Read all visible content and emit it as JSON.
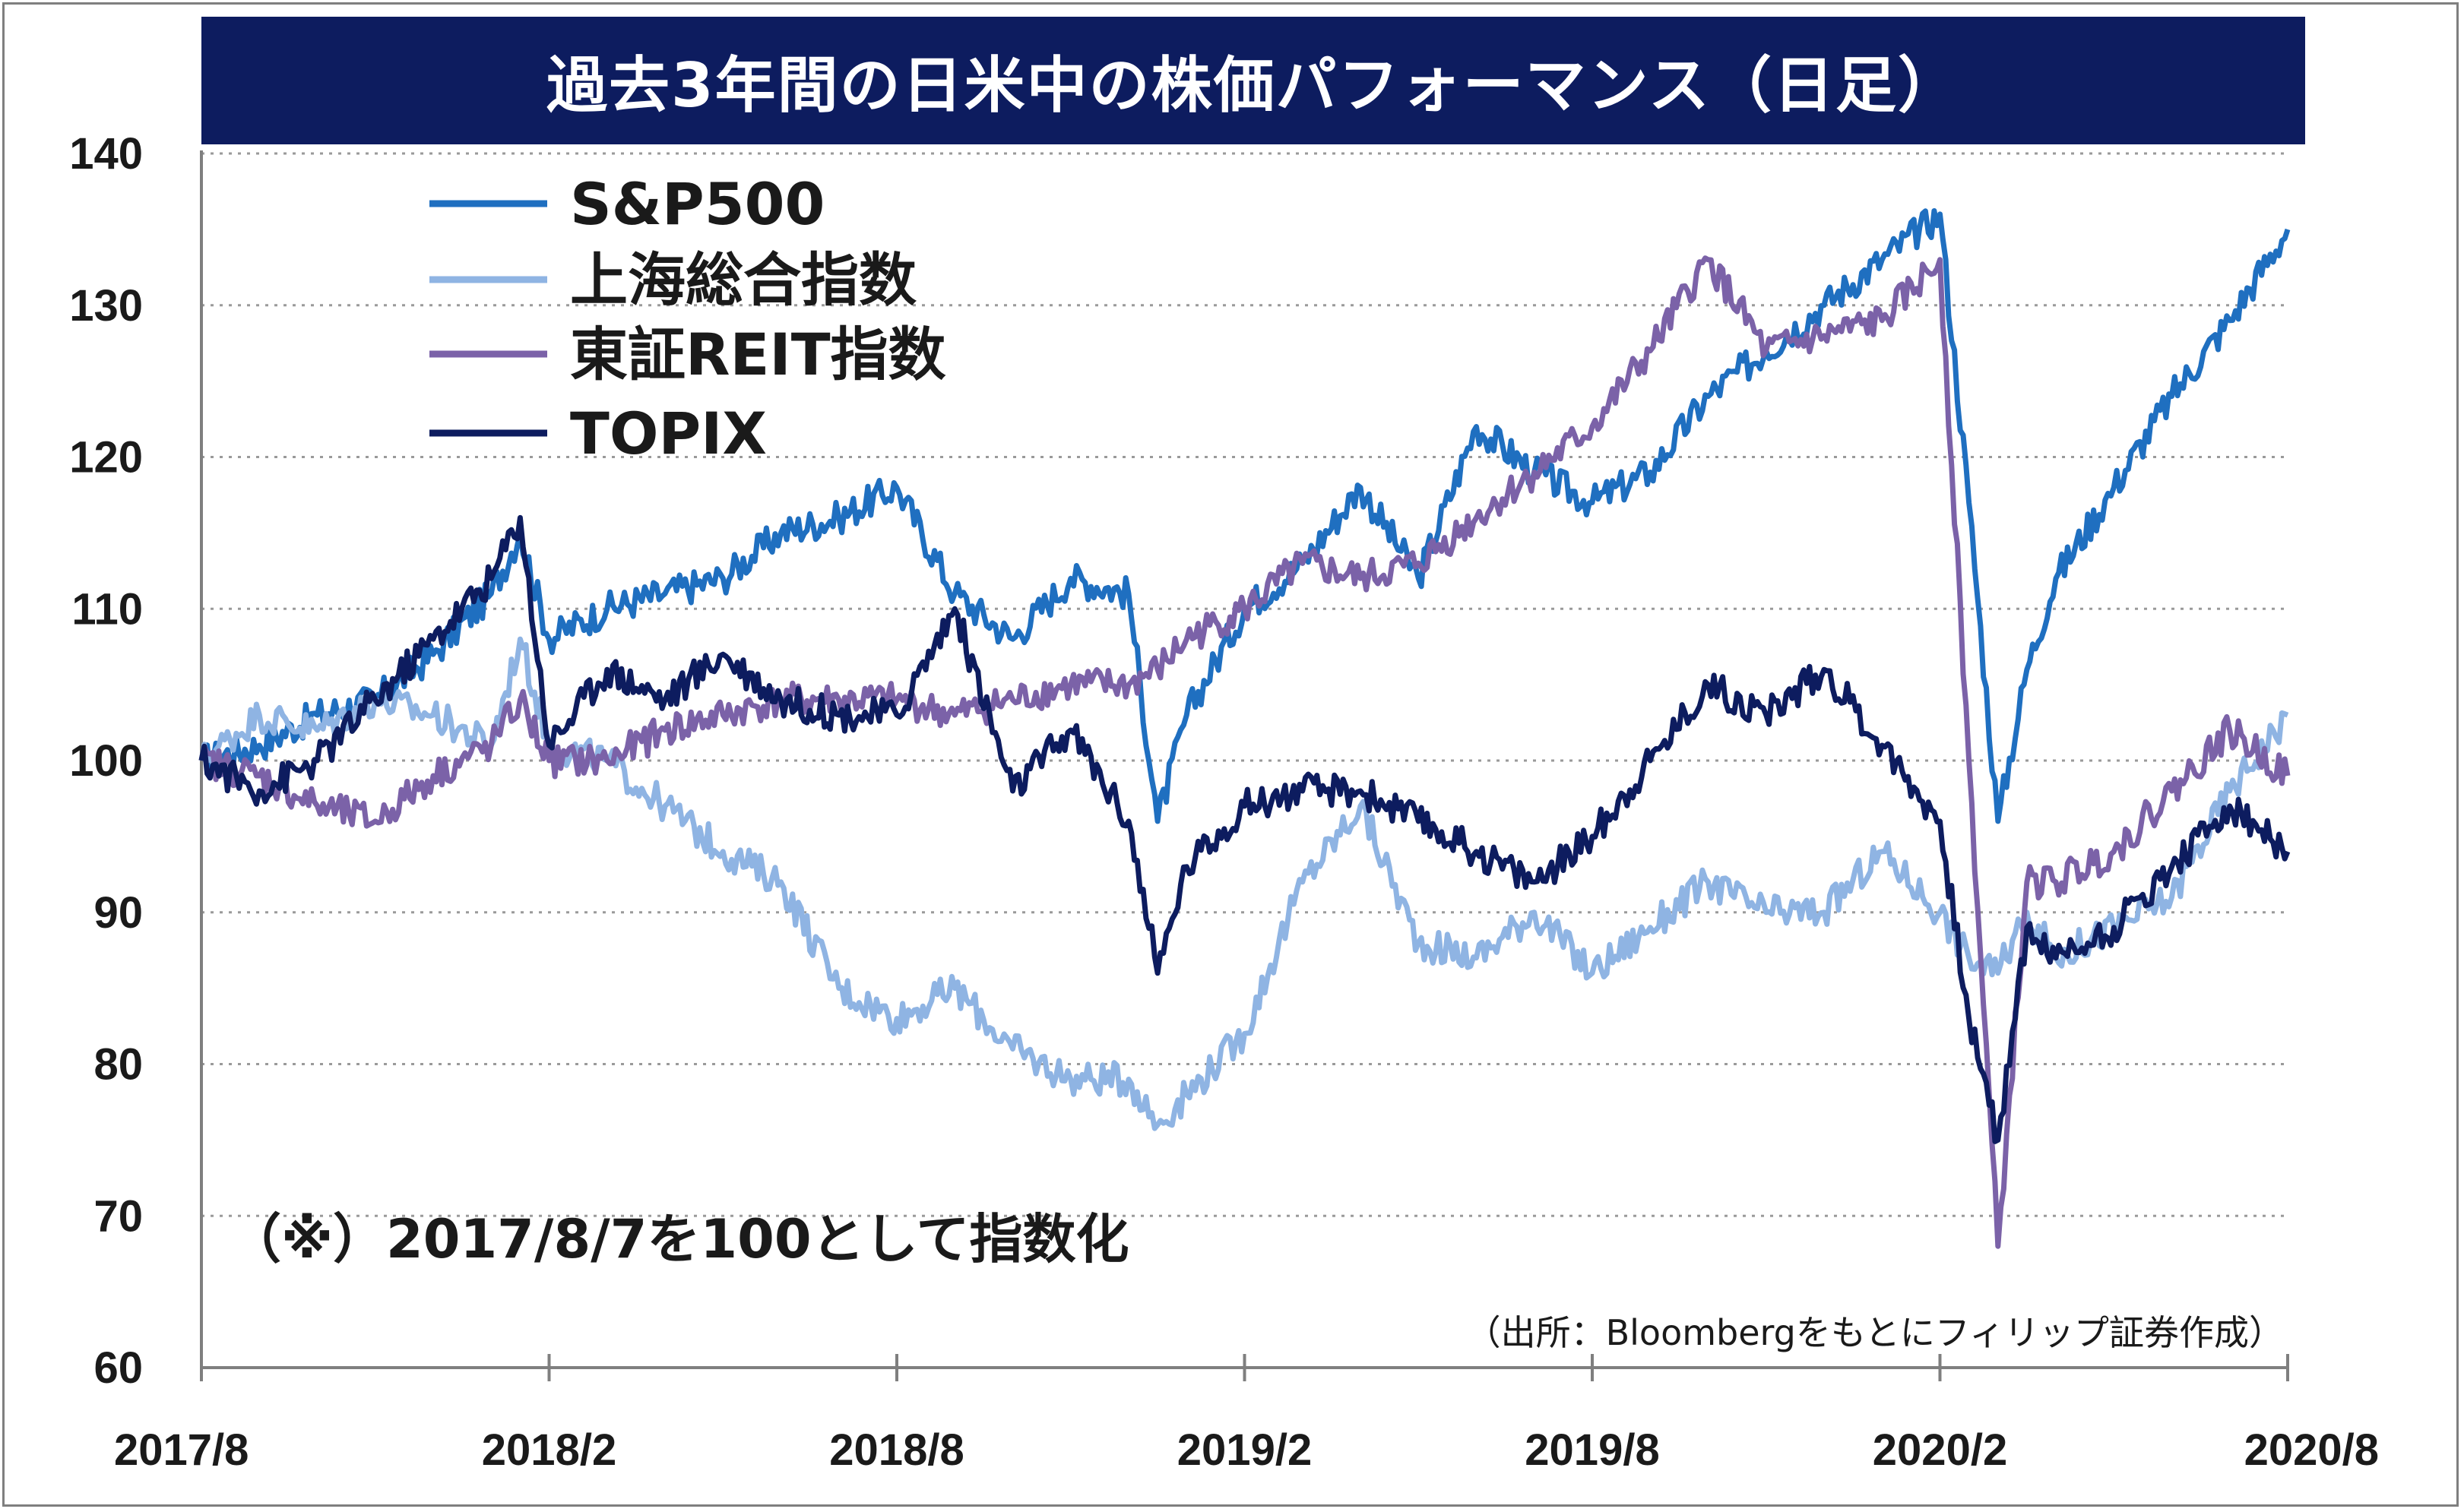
{
  "title": "過去3年間の日米中の株価パフォーマンス（日足）",
  "note": "（※）2017/8/7を100として指数化",
  "source": "（出所：Bloombergをもとにフィリップ証券作成）",
  "chart_data": {
    "type": "line",
    "title": "過去3年間の日米中の株価パフォーマンス（日足）",
    "xlabel": "",
    "ylabel": "",
    "ylim": [
      60,
      140
    ],
    "yticks": [
      60,
      70,
      80,
      90,
      100,
      110,
      120,
      130,
      140
    ],
    "grid": true,
    "legend_position": "top-left",
    "x_tick_labels": [
      "2017/8",
      "2018/2",
      "2018/8",
      "2019/2",
      "2019/8",
      "2020/2",
      "2020/8"
    ],
    "x_tick_positions": [
      0,
      6,
      12,
      18,
      24,
      30,
      36
    ],
    "x": [
      0,
      1,
      2,
      3,
      4,
      5,
      5.5,
      6,
      7,
      8,
      9,
      10,
      11,
      12,
      13,
      14,
      15,
      16,
      16.5,
      17,
      18,
      19,
      20,
      21,
      22,
      23,
      24,
      25,
      26,
      27,
      28,
      29,
      30,
      30.5,
      31,
      31.5,
      32,
      33,
      34,
      35,
      36
    ],
    "series": [
      {
        "name": "S&P500",
        "color": "#1f6fc0",
        "values": [
          100,
          101,
          103,
          104,
          107,
          111,
          115,
          108,
          110,
          111,
          112,
          115,
          116,
          118,
          111,
          108,
          112,
          111,
          96,
          103,
          110,
          113,
          118,
          112,
          122,
          119,
          117,
          119,
          124,
          127,
          130,
          133,
          136,
          117,
          96,
          106,
          112,
          118,
          124,
          129,
          135
        ]
      },
      {
        "name": "上海総合指数",
        "color": "#8fb4e3",
        "values": [
          100,
          103,
          102,
          104,
          103,
          101,
          108,
          101,
          100,
          97,
          94,
          92,
          85,
          83,
          85,
          81,
          79,
          79,
          76,
          78,
          82,
          92,
          97,
          88,
          87,
          90,
          86,
          89,
          92,
          90,
          90,
          94,
          90,
          87,
          86,
          90,
          87,
          89,
          91,
          98,
          103
        ]
      },
      {
        "name": "東証REIT指数",
        "color": "#7b62a8",
        "values": [
          100,
          99,
          97,
          96,
          99,
          101,
          104,
          100,
          100,
          102,
          103,
          104,
          104,
          104,
          103,
          104,
          105,
          105,
          106,
          108,
          110,
          113,
          112,
          113,
          116,
          119,
          122,
          127,
          133,
          127,
          128,
          129,
          133,
          100,
          68,
          92,
          92,
          94,
          98,
          102,
          99
        ]
      },
      {
        "name": "TOPIX",
        "color": "#0d1c5f",
        "values": [
          100,
          98,
          100,
          104,
          108,
          112,
          116,
          101,
          106,
          104,
          107,
          104,
          103,
          103,
          110,
          98,
          102,
          96,
          86,
          93,
          97,
          98,
          98,
          96,
          94,
          92,
          95,
          100,
          105,
          103,
          106,
          101,
          96,
          83,
          75,
          89,
          87,
          89,
          93,
          97,
          94
        ]
      }
    ]
  }
}
